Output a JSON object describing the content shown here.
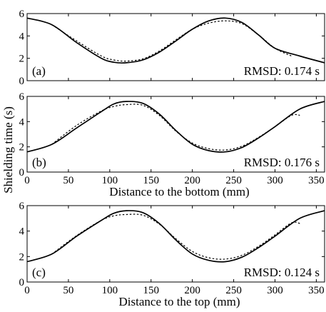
{
  "figure": {
    "ylabel": "Shielding time (s)"
  },
  "chart_data": [
    {
      "type": "line",
      "panel_label": "(a)",
      "rmsd": "RMSD: 0.174 s",
      "xlabel": "",
      "xlim": [
        0,
        360
      ],
      "ylim": [
        0,
        6
      ],
      "xticks": [],
      "yticks": [
        0,
        2,
        4,
        6
      ],
      "series": [
        {
          "style": "solid",
          "x": [
            0,
            30,
            60,
            90,
            105,
            120,
            140,
            160,
            180,
            200,
            220,
            240,
            260,
            280,
            300,
            330,
            360
          ],
          "y": [
            5.6,
            5.0,
            3.4,
            2.0,
            1.65,
            1.6,
            1.85,
            2.55,
            3.55,
            4.6,
            5.35,
            5.6,
            5.2,
            4.1,
            2.9,
            2.2,
            1.6
          ]
        },
        {
          "style": "dotted",
          "x": [
            30,
            60,
            90,
            105,
            120,
            140,
            160,
            180,
            200,
            220,
            240,
            260,
            280,
            300,
            320
          ],
          "y": [
            5.0,
            3.55,
            2.2,
            1.85,
            1.75,
            1.95,
            2.65,
            3.65,
            4.6,
            5.15,
            5.35,
            5.1,
            4.1,
            2.9,
            2.2
          ]
        }
      ]
    },
    {
      "type": "line",
      "panel_label": "(b)",
      "rmsd": "RMSD: 0.176 s",
      "xlabel": "Distance to the bottom (mm)",
      "xlim": [
        0,
        360
      ],
      "ylim": [
        0,
        6
      ],
      "xticks": [
        0,
        50,
        100,
        150,
        200,
        250,
        300,
        350
      ],
      "yticks": [
        0,
        2,
        4,
        6
      ],
      "series": [
        {
          "style": "solid",
          "x": [
            0,
            30,
            60,
            90,
            105,
            120,
            140,
            160,
            180,
            200,
            220,
            240,
            260,
            280,
            300,
            330,
            360
          ],
          "y": [
            1.6,
            2.2,
            3.5,
            4.8,
            5.4,
            5.6,
            5.45,
            4.6,
            3.3,
            2.2,
            1.7,
            1.6,
            1.95,
            2.7,
            3.6,
            5.0,
            5.6
          ]
        },
        {
          "style": "dotted",
          "x": [
            30,
            60,
            90,
            105,
            120,
            140,
            160,
            180,
            200,
            220,
            240,
            260,
            280,
            300,
            320,
            330
          ],
          "y": [
            2.2,
            3.7,
            4.85,
            5.2,
            5.35,
            5.3,
            4.5,
            3.25,
            2.3,
            1.85,
            1.75,
            2.05,
            2.75,
            3.6,
            4.5,
            4.5
          ]
        }
      ]
    },
    {
      "type": "line",
      "panel_label": "(c)",
      "rmsd": "RMSD: 0.124 s",
      "xlabel": "Distance to the top (mm)",
      "xlim": [
        0,
        360
      ],
      "ylim": [
        0,
        6
      ],
      "xticks": [
        0,
        50,
        100,
        150,
        200,
        250,
        300,
        350
      ],
      "yticks": [
        0,
        2,
        4,
        6
      ],
      "series": [
        {
          "style": "solid",
          "x": [
            0,
            30,
            60,
            90,
            105,
            120,
            140,
            160,
            180,
            200,
            220,
            240,
            260,
            280,
            300,
            330,
            360
          ],
          "y": [
            1.6,
            2.2,
            3.6,
            4.85,
            5.4,
            5.6,
            5.45,
            4.6,
            3.3,
            2.2,
            1.7,
            1.6,
            1.95,
            2.7,
            3.6,
            5.0,
            5.6
          ]
        },
        {
          "style": "dotted",
          "x": [
            30,
            60,
            90,
            105,
            120,
            140,
            160,
            180,
            200,
            220,
            240,
            260,
            280,
            300,
            320,
            330
          ],
          "y": [
            2.2,
            3.65,
            4.85,
            5.2,
            5.3,
            5.25,
            4.55,
            3.4,
            2.4,
            1.9,
            1.8,
            2.1,
            2.8,
            3.7,
            4.65,
            4.6
          ]
        }
      ]
    }
  ]
}
